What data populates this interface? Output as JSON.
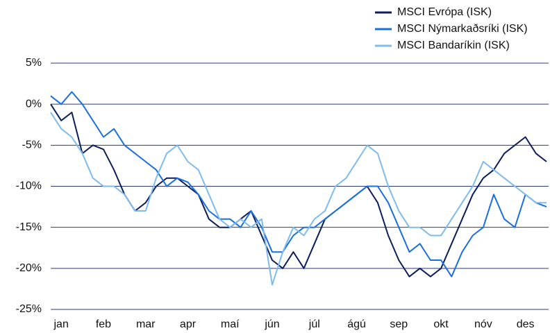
{
  "chart_data": {
    "type": "line",
    "categories": [
      null,
      "jan",
      null,
      null,
      null,
      "feb",
      null,
      null,
      null,
      "mar",
      null,
      null,
      null,
      "apr",
      null,
      null,
      null,
      "maí",
      null,
      null,
      null,
      "jún",
      null,
      null,
      null,
      "júl",
      null,
      null,
      null,
      "ágú",
      null,
      null,
      null,
      "sep",
      null,
      null,
      null,
      "okt",
      null,
      null,
      null,
      "nóv",
      null,
      null,
      null,
      "des",
      null,
      null
    ],
    "series": [
      {
        "name": "MSCI Evrópa (ISK)",
        "color": "#0b1e5b",
        "values": [
          0,
          -2,
          -1,
          -6,
          -5,
          -5.5,
          -8,
          -11,
          -13,
          -12,
          -10,
          -9,
          -9,
          -10,
          -11,
          -14,
          -15,
          -15,
          -14,
          -13,
          -16,
          -19,
          -20,
          -18,
          -20,
          -17,
          -14,
          -13,
          -12,
          -11,
          -10,
          -12,
          -16,
          -19,
          -21,
          -20,
          -21,
          -20,
          -17,
          -14,
          -11,
          -9,
          -8,
          -6,
          -5,
          -4,
          -6,
          -7
        ]
      },
      {
        "name": "MSCI Nýmarkaðsríki (ISK)",
        "color": "#1a6fe0",
        "values": [
          1,
          0,
          1.5,
          0,
          -2,
          -4,
          -3,
          -5,
          -6,
          -7,
          -8,
          -10,
          -9,
          -9.5,
          -11,
          -13,
          -14,
          -14,
          -15,
          -13,
          -15,
          -18,
          -18,
          -16,
          -15,
          -15,
          -14,
          -13,
          -12,
          -11,
          -10,
          -10,
          -12,
          -15,
          -18,
          -17,
          -19,
          -19,
          -21,
          -18,
          -16,
          -15,
          -11,
          -14,
          -15,
          -11,
          -12,
          -12.5
        ]
      },
      {
        "name": "MSCI Bandaríkin (ISK)",
        "color": "#7dbbee",
        "values": [
          -1,
          -3,
          -4,
          -6,
          -9,
          -10,
          -10,
          -11,
          -13,
          -13,
          -9,
          -6,
          -5,
          -7,
          -8,
          -11,
          -14,
          -15,
          -14,
          -15,
          -14,
          -22,
          -18,
          -15,
          -16,
          -14,
          -13,
          -10,
          -9,
          -7,
          -5,
          -6,
          -10,
          -13,
          -15,
          -15,
          -16,
          -16,
          -14,
          -12,
          -10,
          -7,
          -8,
          -9,
          -10,
          -11,
          -12,
          -12
        ]
      }
    ],
    "ylim": [
      -25,
      5
    ],
    "yticks": [
      {
        "value": 5,
        "label": "5%"
      },
      {
        "value": 0,
        "label": "0%"
      },
      {
        "value": -5,
        "label": "-5%"
      },
      {
        "value": -10,
        "label": "-10%"
      },
      {
        "value": -15,
        "label": "-15%"
      },
      {
        "value": -20,
        "label": "-20%"
      },
      {
        "value": -25,
        "label": "-25%"
      }
    ],
    "grid": true,
    "legend": "top-right"
  }
}
